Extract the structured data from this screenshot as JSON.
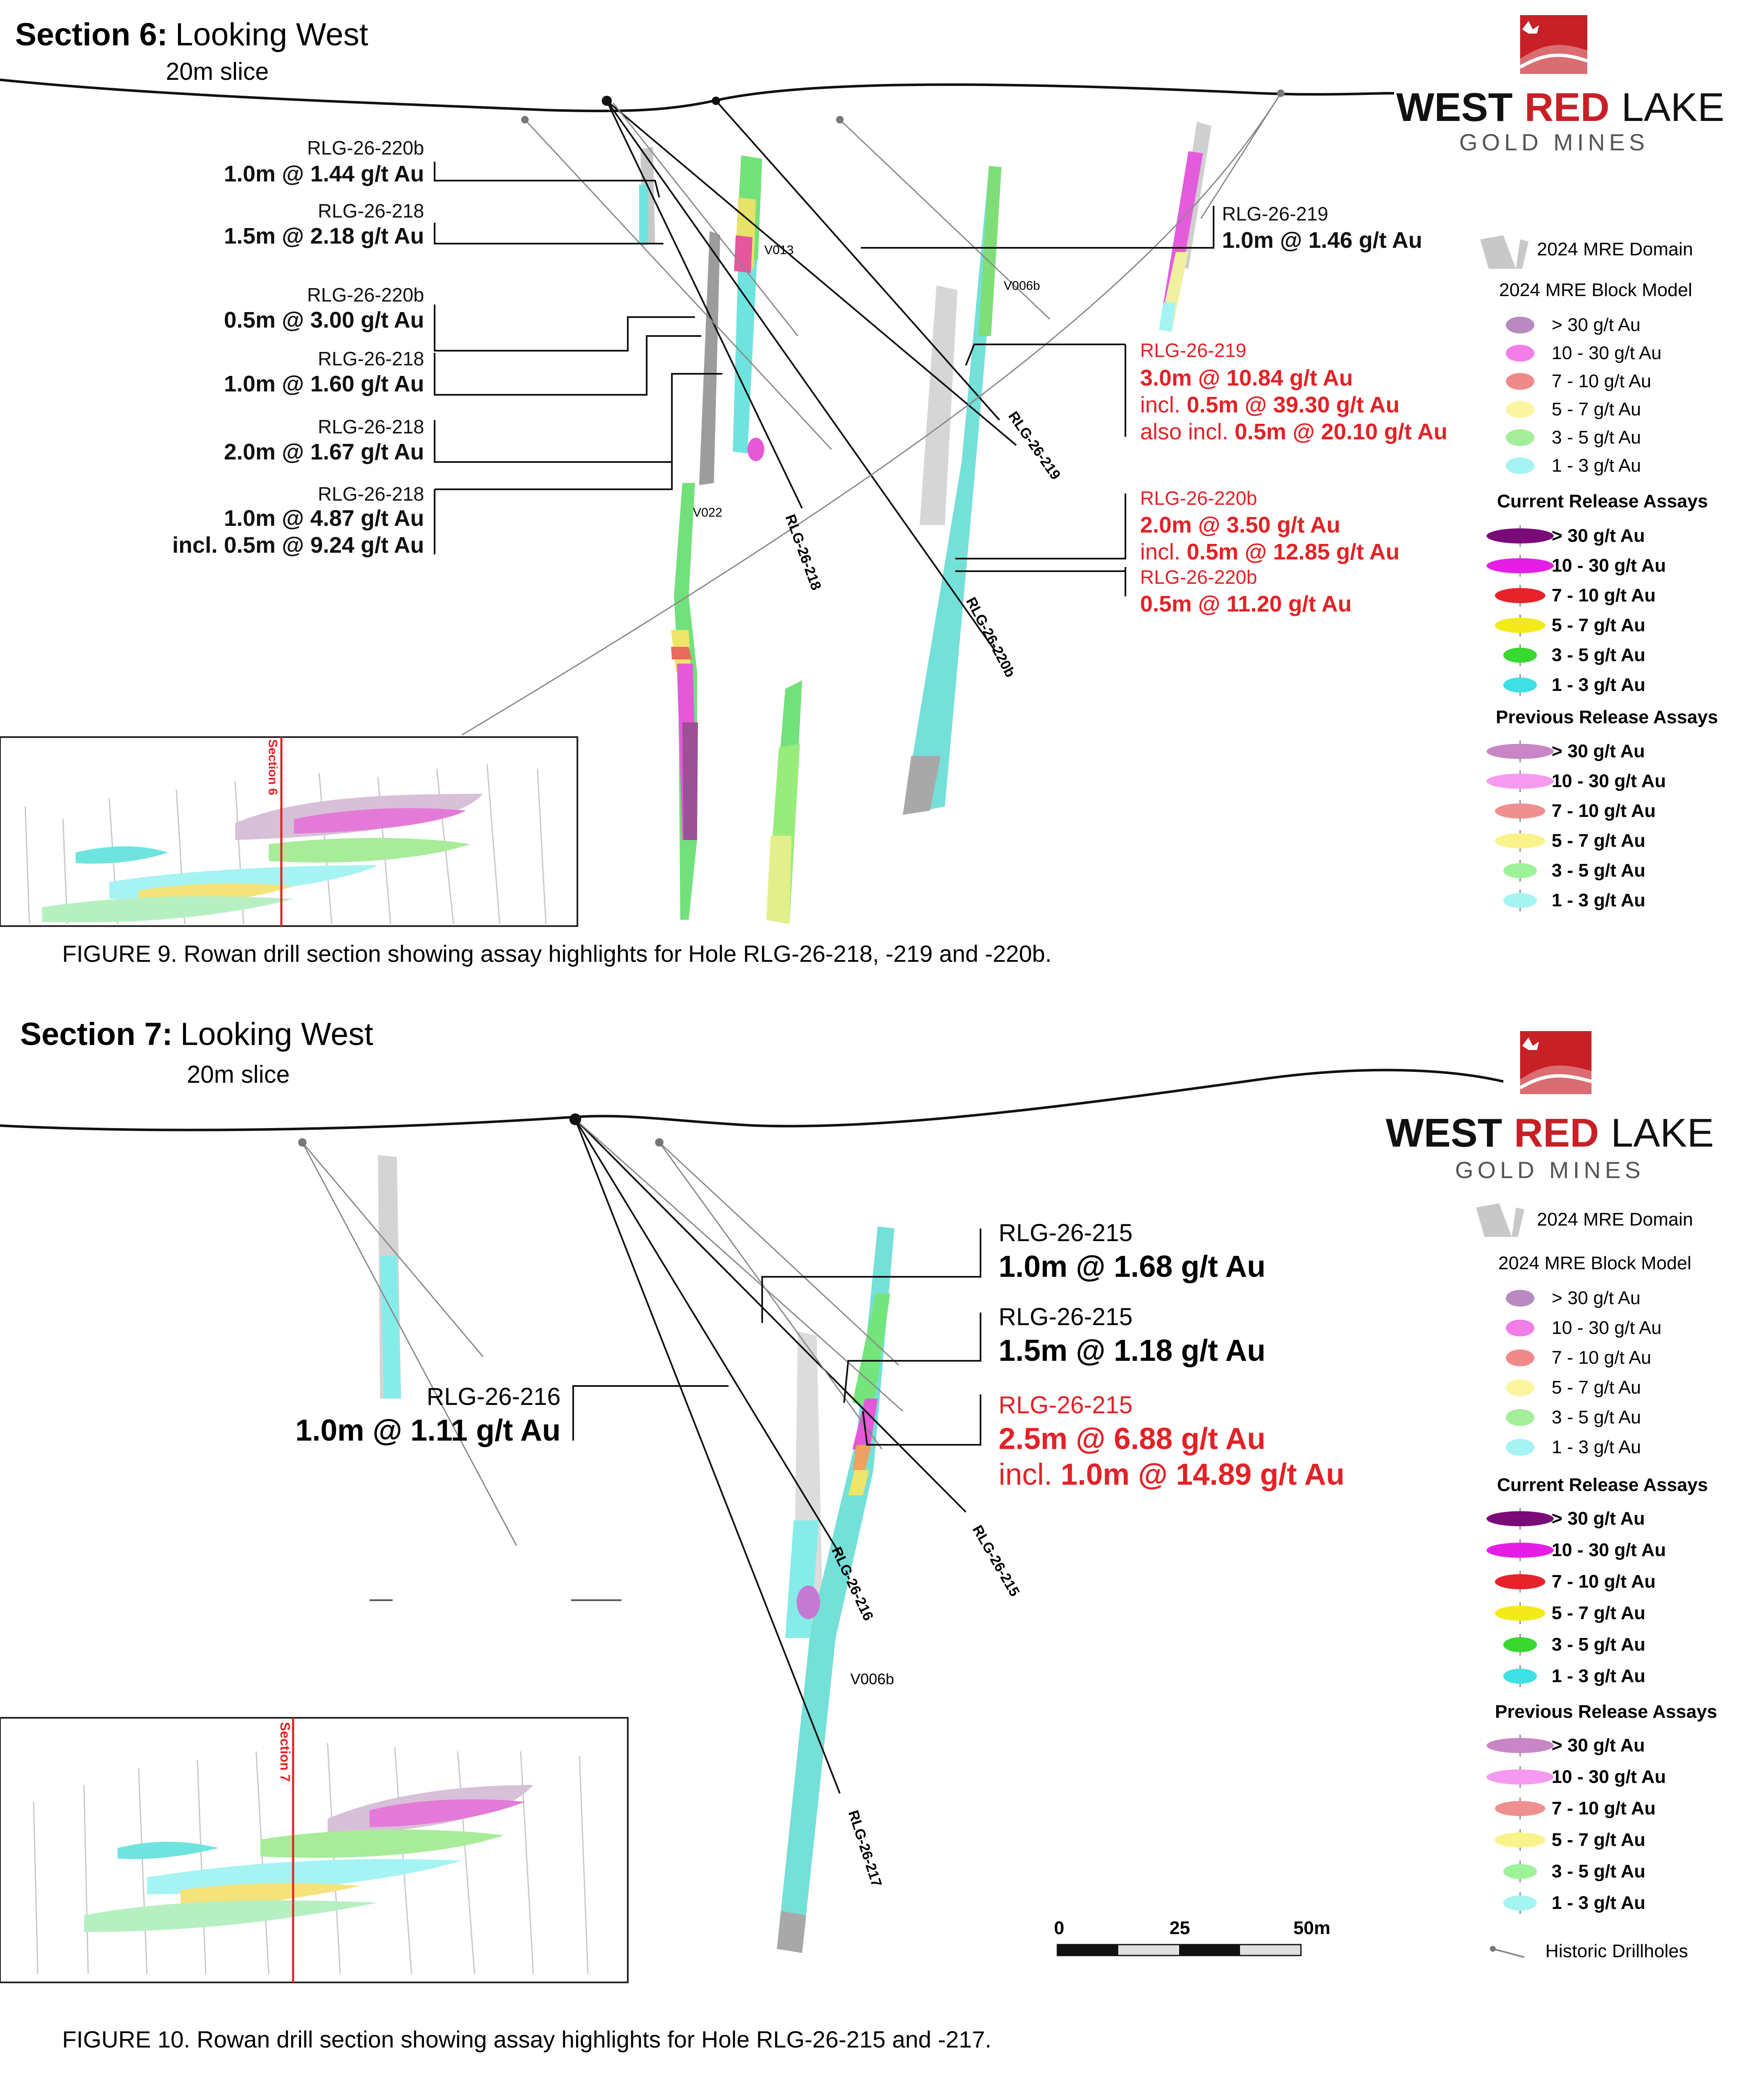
{
  "top": {
    "section_bold": "Section 6:",
    "section_rest": "Looking West",
    "slice": "20m slice",
    "caption": "FIGURE 9. Rowan drill section showing assay highlights for Hole RLG-26-218, -219 and -220b.",
    "left_intercepts": [
      {
        "hole": "RLG-26-220b",
        "lines": [
          "1.0m @ 1.44 g/t Au"
        ]
      },
      {
        "hole": "RLG-26-218",
        "lines": [
          "1.5m @ 2.18 g/t Au"
        ]
      },
      {
        "hole": "RLG-26-220b",
        "lines": [
          "0.5m @ 3.00 g/t Au"
        ]
      },
      {
        "hole": "RLG-26-218",
        "lines": [
          "1.0m @ 1.60 g/t Au"
        ]
      },
      {
        "hole": "RLG-26-218",
        "lines": [
          "2.0m @ 1.67 g/t Au"
        ]
      },
      {
        "hole": "RLG-26-218",
        "lines": [
          "1.0m @ 4.87 g/t Au",
          "incl. 0.5m @ 9.24 g/t Au"
        ]
      }
    ],
    "right_intercept_219": {
      "hole": "RLG-26-219",
      "lines": [
        "1.0m @ 1.46 g/t Au"
      ]
    },
    "red_219": {
      "hole": "RLG-26-219",
      "l1": "3.0m @ 10.84 g/t Au",
      "l2_pre": "incl. ",
      "l2": "0.5m @ 39.30 g/t Au",
      "l3_pre": "also incl. ",
      "l3": "0.5m @ 20.10 g/t Au"
    },
    "red_220b_a": {
      "hole": "RLG-26-220b",
      "l1": "2.0m @ 3.50 g/t Au",
      "l2_pre": "incl. ",
      "l2": "0.5m @ 12.85 g/t Au"
    },
    "red_220b_b": {
      "hole": "RLG-26-220b",
      "l1": "0.5m @ 11.20 g/t Au"
    },
    "veins": [
      "V013",
      "V006b",
      "V022"
    ],
    "traces": [
      "RLG-26-219",
      "RLG-26-218",
      "RLG-26-220b"
    ],
    "inset_section": "Section 6"
  },
  "bottom": {
    "section_bold": "Section 7:",
    "section_rest": "Looking West",
    "slice": "20m slice",
    "caption": "FIGURE 10. Rowan drill section showing assay highlights for Hole RLG-26-215 and -217.",
    "intercepts": [
      {
        "hole": "RLG-26-215",
        "line": "1.0m @ 1.68 g/t Au"
      },
      {
        "hole": "RLG-26-215",
        "line": "1.5m @ 1.18 g/t Au"
      }
    ],
    "red_215": {
      "hole": "RLG-26-215",
      "l1": "2.5m @ 6.88 g/t Au",
      "l2_pre": "incl. ",
      "l2": "1.0m @ 14.89 g/t Au"
    },
    "left_216": {
      "hole": "RLG-26-216",
      "line": "1.0m @ 1.11 g/t Au"
    },
    "veins": [
      "V006b"
    ],
    "traces": [
      "RLG-26-216",
      "RLG-26-215",
      "RLG-26-217"
    ],
    "inset_section": "Section 7",
    "scale": {
      "labels": [
        "0",
        "25",
        "50m"
      ]
    }
  },
  "logo": {
    "word1": "WEST",
    "word2": "RED",
    "word3": "LAKE",
    "sub": "GOLD MINES"
  },
  "legend": {
    "domain": "2024 MRE Domain",
    "block_title": "2024 MRE Block Model",
    "current_title": "Current Release Assays",
    "previous_title": "Previous Release Assays",
    "grades": [
      "> 30 g/t Au",
      "10 - 30 g/t Au",
      "7 - 10 g/t Au",
      "5 - 7 g/t Au",
      "3 - 5 g/t Au",
      "1 - 3 g/t Au"
    ],
    "block_colors": [
      "#b88ac0",
      "#f27ee8",
      "#f08a8a",
      "#fbf5a0",
      "#a4ee9a",
      "#a6f3f3"
    ],
    "current_colors": [
      "#7a0a78",
      "#e51ee5",
      "#e8222a",
      "#f4ea1a",
      "#38d830",
      "#3ee0e4"
    ],
    "previous_colors": [
      "#c886c6",
      "#f59af0",
      "#ef8f8f",
      "#f9f38c",
      "#9ef29a",
      "#a4f5f2"
    ],
    "historic": "Historic Drillholes"
  }
}
